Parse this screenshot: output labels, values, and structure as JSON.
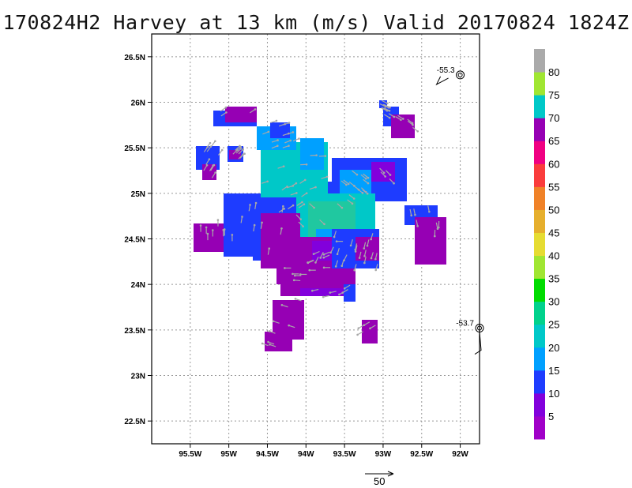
{
  "title": "170824H2 Harvey at 13 km (m/s) Valid 20170824 1824Z",
  "map": {
    "lon_range": [
      -96,
      -91.75
    ],
    "lat_range": [
      22.25,
      26.75
    ],
    "x_ticks": [
      {
        "lon": -95.5,
        "label": "95.5W"
      },
      {
        "lon": -95,
        "label": "95W"
      },
      {
        "lon": -94.5,
        "label": "94.5W"
      },
      {
        "lon": -94,
        "label": "94W"
      },
      {
        "lon": -93.5,
        "label": "93.5W"
      },
      {
        "lon": -93,
        "label": "93W"
      },
      {
        "lon": -92.5,
        "label": "92.5W"
      },
      {
        "lon": -92,
        "label": "92W"
      }
    ],
    "y_ticks": [
      {
        "lat": 26.5,
        "label": "26.5N"
      },
      {
        "lat": 26,
        "label": "26N"
      },
      {
        "lat": 25.5,
        "label": "25.5N"
      },
      {
        "lat": 25,
        "label": "25N"
      },
      {
        "lat": 24.5,
        "label": "24.5N"
      },
      {
        "lat": 24,
        "label": "24N"
      },
      {
        "lat": 23.5,
        "label": "23.5N"
      },
      {
        "lat": 23,
        "label": "23N"
      },
      {
        "lat": 22.5,
        "label": "22.5N"
      }
    ],
    "grid": true,
    "stations": [
      {
        "value": "-55.3",
        "lon": -92.0,
        "lat": 26.3
      },
      {
        "value": "-53.7",
        "lon": -91.75,
        "lat": 23.52
      }
    ]
  },
  "colorbar": {
    "labels": [
      "5",
      "10",
      "15",
      "20",
      "25",
      "30",
      "35",
      "40",
      "45",
      "50",
      "55",
      "60",
      "65",
      "70",
      "75",
      "80"
    ],
    "colors": [
      "#a000c8",
      "#8200dc",
      "#1e3cff",
      "#00a0ff",
      "#00c8c8",
      "#00d28c",
      "#00dc00",
      "#a0e632",
      "#e6dc32",
      "#e6af2d",
      "#f08228",
      "#fa3c3c",
      "#f00082",
      "#9600b4",
      "#00c8c8",
      "#a0e632",
      "#aaaaaa"
    ]
  },
  "vector_ref": {
    "label": "50"
  }
}
